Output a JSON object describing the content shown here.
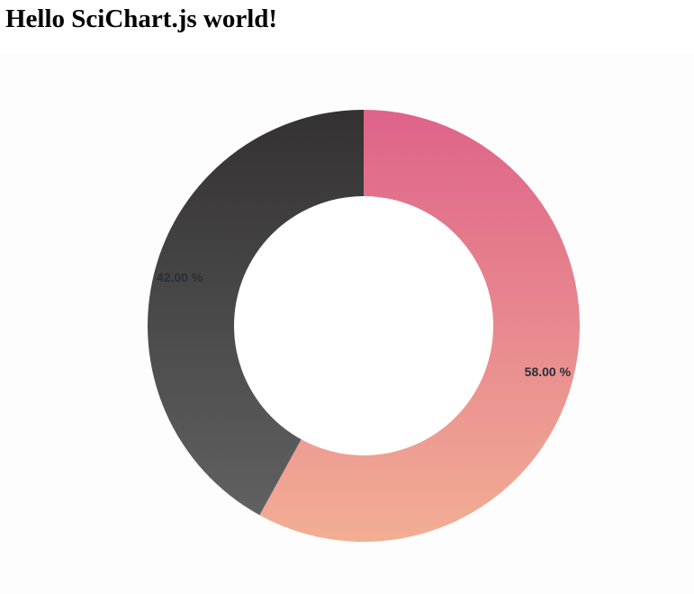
{
  "page": {
    "title": "Hello SciChart.js world!"
  },
  "chart_data": {
    "type": "pie",
    "variant": "donut",
    "slices": [
      {
        "value": 58.0,
        "label": "58.00 %",
        "color_top": "#de6389",
        "color_bottom": "#f2ae94"
      },
      {
        "value": 42.0,
        "label": "42.00 %",
        "color_top": "#333132",
        "color_bottom": "#646464"
      }
    ],
    "start_at": "top",
    "direction": "clockwise",
    "center_color": "#ffffff",
    "legend": "none"
  }
}
